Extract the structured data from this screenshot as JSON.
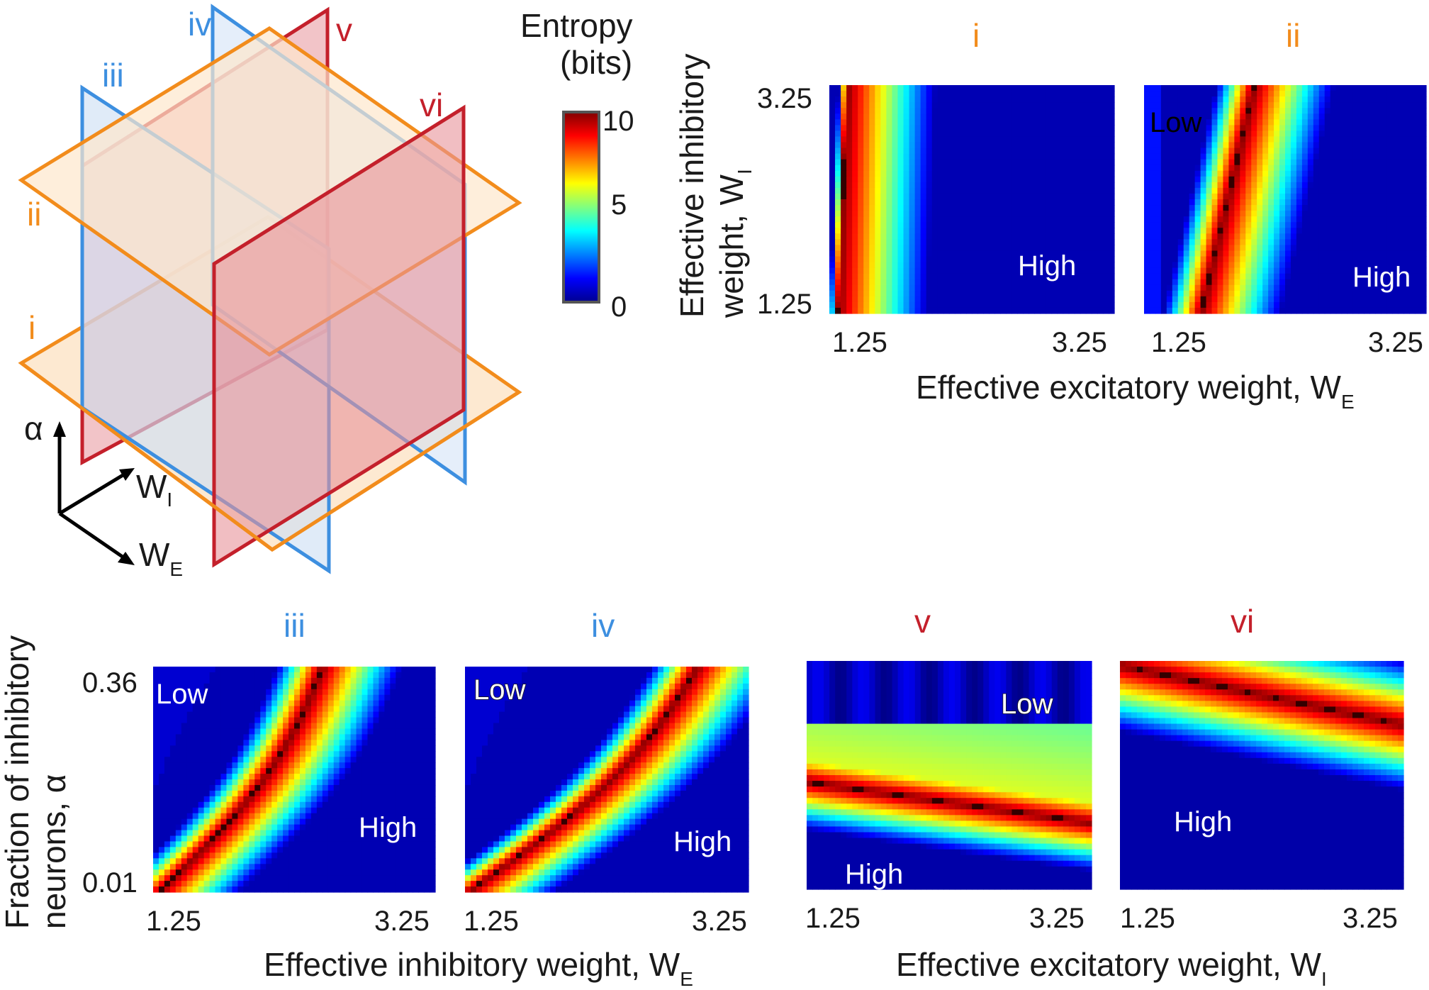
{
  "colors": {
    "orange": "#f28c1c",
    "orange_fill": "#fde7cc",
    "blue": "#3d8fe0",
    "blue_fill": "#cfe0f5",
    "red": "#c4202b",
    "red_fill": "#e8939a",
    "colormap": "jet"
  },
  "schematic": {
    "planes": {
      "i": "i",
      "ii": "ii",
      "iii": "iii",
      "iv": "iv",
      "v": "v",
      "vi": "vi"
    },
    "axes": {
      "alpha": "α",
      "wi_main": "W",
      "wi_sub": "I",
      "we_main": "W",
      "we_sub": "E"
    }
  },
  "colorbar": {
    "title_line1": "Entropy",
    "title_line2": "(bits)",
    "ticks": [
      "10",
      "5",
      "0"
    ],
    "range": [
      0,
      10
    ]
  },
  "shared_labels": {
    "top_x_label_main": "Effective excitatory weight, W",
    "top_x_label_sub": "E",
    "top_y_label_line1": "Effective inhibitory",
    "top_y_label_line2_main": "weight, W",
    "top_y_label_line2_sub": "I",
    "bottom_y_label_line1": "Fraction of inhibitory",
    "bottom_y_label_line2": "neurons, α",
    "bottom_left_x_label_main": "Effective inhibitory weight, W",
    "bottom_left_x_label_sub": "E",
    "bottom_right_x_label_main": "Effective excitatory weight, W",
    "bottom_right_x_label_sub": "I"
  },
  "chart_data": [
    {
      "type": "heatmap",
      "id": "i",
      "title": "i",
      "title_color": "orange",
      "x_ticks": [
        "1.25",
        "3.25"
      ],
      "y_ticks": [
        "3.25",
        "1.25"
      ],
      "xlim": [
        1.25,
        3.25
      ],
      "ylim": [
        1.25,
        3.25
      ],
      "zlim": [
        0,
        10
      ],
      "annotations": [
        {
          "text": "High",
          "style": "white"
        }
      ],
      "field": {
        "ridge_t": [
          0.03,
          0.06
        ],
        "decay": 0.33,
        "left_decay": 0.03,
        "ridge_curve": 0,
        "low_region": "none"
      }
    },
    {
      "type": "heatmap",
      "id": "ii",
      "title": "ii",
      "title_color": "orange",
      "x_ticks": [
        "1.25",
        "3.25"
      ],
      "y_ticks": [],
      "xlim": [
        1.25,
        3.25
      ],
      "ylim": [
        1.25,
        3.25
      ],
      "zlim": [
        0,
        10
      ],
      "annotations": [
        {
          "text": "Low",
          "style": "black"
        },
        {
          "text": "High",
          "style": "white"
        }
      ],
      "field": {
        "ridge_t": [
          0.2,
          0.39
        ],
        "decay": 0.3,
        "left_decay": 0.14,
        "ridge_curve": 0,
        "low_region": "left"
      }
    },
    {
      "type": "heatmap",
      "id": "iii",
      "title": "iii",
      "title_color": "blue",
      "x_ticks": [
        "1.25",
        "3.25"
      ],
      "y_ticks": [
        "0.36",
        "0.01"
      ],
      "xlim": [
        1.25,
        3.25
      ],
      "ylim": [
        0.01,
        0.36
      ],
      "zlim": [
        0,
        10
      ],
      "annotations": [
        {
          "text": "Low",
          "style": "white"
        },
        {
          "text": "High",
          "style": "white"
        }
      ],
      "field": {
        "ridge_t": [
          0.02,
          0.6
        ],
        "decay": 0.3,
        "left_decay": 0.17,
        "ridge_curve": 0.08,
        "low_region": "topleft"
      }
    },
    {
      "type": "heatmap",
      "id": "iv",
      "title": "iv",
      "title_color": "blue",
      "x_ticks": [
        "1.25",
        "3.25"
      ],
      "y_ticks": [],
      "xlim": [
        1.25,
        3.25
      ],
      "ylim": [
        0.01,
        0.36
      ],
      "zlim": [
        0,
        10
      ],
      "annotations": [
        {
          "text": "Low",
          "style": "outline"
        },
        {
          "text": "High",
          "style": "white"
        }
      ],
      "field": {
        "ridge_t": [
          0.01,
          0.82
        ],
        "decay": 0.32,
        "left_decay": 0.17,
        "ridge_curve": 0.1,
        "low_region": "topleft"
      }
    },
    {
      "type": "heatmap",
      "id": "v",
      "title": "v",
      "title_color": "red",
      "x_ticks": [
        "1.25",
        "3.25"
      ],
      "y_ticks": [],
      "xlim": [
        1.25,
        3.25
      ],
      "ylim": [
        0.01,
        0.36
      ],
      "zlim": [
        0,
        10
      ],
      "annotations": [
        {
          "text": "Low",
          "style": "outline"
        },
        {
          "text": "High",
          "style": "white"
        }
      ],
      "field": {
        "orientation": "horizontal",
        "ridge_y": [
          0.53,
          0.71
        ],
        "cut_y": 0.28,
        "decay": 0.22,
        "low_region": "top"
      }
    },
    {
      "type": "heatmap",
      "id": "vi",
      "title": "vi",
      "title_color": "red",
      "x_ticks": [
        "1.25",
        "3.25"
      ],
      "y_ticks": [],
      "xlim": [
        1.25,
        3.25
      ],
      "ylim": [
        0.01,
        0.36
      ],
      "zlim": [
        0,
        10
      ],
      "annotations": [
        {
          "text": "High",
          "style": "white"
        }
      ],
      "field": {
        "orientation": "horizontal",
        "ridge_y": [
          0.02,
          0.28
        ],
        "cut_y": -1,
        "decay": 0.3,
        "low_region": "none"
      }
    }
  ]
}
